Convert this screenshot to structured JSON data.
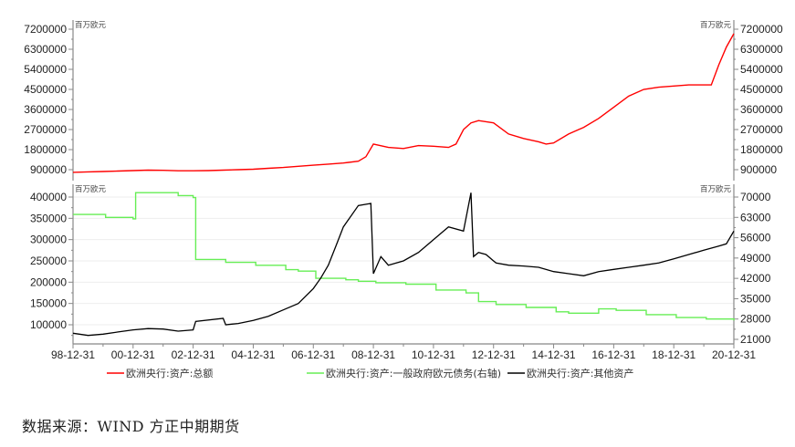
{
  "chart_data": [
    {
      "type": "line",
      "title": "",
      "panel": "top",
      "unit_left": "百万欧元",
      "unit_right": "百万欧元",
      "yaxis_ticks": [
        900000,
        1800000,
        2700000,
        3600000,
        4500000,
        5400000,
        6300000,
        7200000
      ],
      "yaxis_tick_labels": [
        "900000",
        "1800000",
        "2700000",
        "3600000",
        "4500000",
        "5400000",
        "6300000",
        "7200000"
      ],
      "ylim": [
        700000,
        7200000
      ],
      "grid": false,
      "series": [
        {
          "name": "欧洲央行:资产:总额",
          "color": "#ff0000",
          "x": [
            "1998-12",
            "1999-06",
            "1999-12",
            "2000-06",
            "2000-12",
            "2001-06",
            "2001-12",
            "2002-06",
            "2002-12",
            "2003-06",
            "2003-12",
            "2004-06",
            "2004-12",
            "2005-06",
            "2005-12",
            "2006-06",
            "2006-12",
            "2007-06",
            "2007-12",
            "2008-06",
            "2008-09",
            "2008-12",
            "2009-06",
            "2009-12",
            "2010-06",
            "2010-12",
            "2011-06",
            "2011-09",
            "2011-12",
            "2012-03",
            "2012-06",
            "2012-12",
            "2013-06",
            "2013-12",
            "2014-06",
            "2014-09",
            "2014-12",
            "2015-06",
            "2015-12",
            "2016-06",
            "2016-12",
            "2017-06",
            "2017-12",
            "2018-06",
            "2018-12",
            "2019-06",
            "2019-12",
            "2020-03",
            "2020-06",
            "2020-09",
            "2020-12"
          ],
          "values": [
            780000,
            800000,
            820000,
            840000,
            860000,
            880000,
            870000,
            850000,
            850000,
            860000,
            880000,
            900000,
            920000,
            960000,
            1000000,
            1050000,
            1100000,
            1150000,
            1200000,
            1280000,
            1480000,
            2050000,
            1900000,
            1850000,
            1980000,
            1950000,
            1900000,
            2050000,
            2700000,
            3000000,
            3100000,
            3000000,
            2500000,
            2300000,
            2150000,
            2050000,
            2100000,
            2500000,
            2800000,
            3200000,
            3700000,
            4200000,
            4500000,
            4600000,
            4650000,
            4700000,
            4700000,
            4700000,
            5600000,
            6400000,
            7000000
          ]
        }
      ]
    },
    {
      "type": "line",
      "title": "",
      "panel": "bottom",
      "unit_left": "百万欧元",
      "unit_right": "百万欧元",
      "yaxis_left_ticks": [
        100000,
        150000,
        200000,
        250000,
        300000,
        350000,
        400000
      ],
      "yaxis_left_tick_labels": [
        "100000",
        "150000",
        "200000",
        "250000",
        "300000",
        "350000",
        "400000"
      ],
      "yaxis_right_ticks": [
        21000,
        28000,
        35000,
        42000,
        49000,
        56000,
        63000,
        70000
      ],
      "yaxis_right_tick_labels": [
        "21000",
        "28000",
        "35000",
        "42000",
        "49000",
        "56000",
        "63000",
        "70000"
      ],
      "ylim_left": [
        60000,
        415000
      ],
      "ylim_right": [
        21000,
        70000
      ],
      "xlabel": "",
      "xaxis_tick_labels": [
        "98-12-31",
        "00-12-31",
        "02-12-31",
        "04-12-31",
        "06-12-31",
        "08-12-31",
        "10-12-31",
        "12-12-31",
        "14-12-31",
        "16-12-31",
        "18-12-31",
        "20-12-31"
      ],
      "grid": true,
      "series": [
        {
          "name": "欧洲央行:资产:一般政府欧元债务(右轴)",
          "axis": "right",
          "color": "#66ee55",
          "x": [
            "1998-12",
            "1999-12",
            "2000-01",
            "2000-12",
            "2001-01",
            "2001-12",
            "2002-06",
            "2002-12",
            "2003-01",
            "2004-01",
            "2005-01",
            "2006-01",
            "2006-06",
            "2007-01",
            "2008-01",
            "2008-06",
            "2009-01",
            "2010-01",
            "2011-01",
            "2012-01",
            "2012-06",
            "2013-01",
            "2014-01",
            "2015-01",
            "2015-06",
            "2016-01",
            "2016-06",
            "2017-01",
            "2018-01",
            "2019-01",
            "2020-01",
            "2020-12"
          ],
          "values": [
            64000,
            64000,
            63000,
            62500,
            71500,
            71500,
            70500,
            69800,
            48500,
            47500,
            46500,
            45000,
            44500,
            42000,
            41500,
            41000,
            40500,
            40000,
            38000,
            37000,
            34000,
            33000,
            32000,
            30500,
            30000,
            30000,
            31500,
            31000,
            29500,
            28500,
            28000,
            27500
          ]
        },
        {
          "name": "欧洲央行:资产:其他资产",
          "axis": "left",
          "color": "#000000",
          "x": [
            "1998-12",
            "1999-06",
            "1999-12",
            "2000-06",
            "2000-12",
            "2001-06",
            "2001-12",
            "2002-06",
            "2002-12",
            "2003-01",
            "2003-12",
            "2004-01",
            "2004-06",
            "2004-12",
            "2005-06",
            "2005-12",
            "2006-06",
            "2006-12",
            "2007-03",
            "2007-06",
            "2007-09",
            "2007-12",
            "2008-06",
            "2008-11",
            "2008-12",
            "2009-03",
            "2009-06",
            "2009-12",
            "2010-06",
            "2010-12",
            "2011-06",
            "2011-12",
            "2012-03",
            "2012-04",
            "2012-06",
            "2012-09",
            "2012-12",
            "2013-01",
            "2013-06",
            "2013-12",
            "2014-06",
            "2014-12",
            "2015-06",
            "2015-12",
            "2016-06",
            "2016-12",
            "2017-06",
            "2017-12",
            "2018-06",
            "2018-12",
            "2019-06",
            "2019-12",
            "2020-06",
            "2020-09",
            "2020-12"
          ],
          "values": [
            80000,
            75000,
            78000,
            83000,
            88000,
            91000,
            90000,
            85000,
            88000,
            108000,
            115000,
            100000,
            103000,
            110000,
            120000,
            135000,
            150000,
            185000,
            210000,
            240000,
            285000,
            330000,
            380000,
            385000,
            220000,
            260000,
            240000,
            250000,
            270000,
            300000,
            330000,
            320000,
            410000,
            260000,
            270000,
            265000,
            250000,
            245000,
            240000,
            238000,
            235000,
            225000,
            220000,
            215000,
            225000,
            230000,
            235000,
            240000,
            245000,
            255000,
            265000,
            275000,
            285000,
            290000,
            320000
          ]
        },
        {
          "name": "欧洲央行:资产:总额",
          "axis": "top-panel",
          "color": "#ff0000",
          "values": []
        }
      ]
    }
  ],
  "legend": {
    "items": [
      {
        "label": "欧洲央行:资产:总额",
        "color": "#ff0000"
      },
      {
        "label": "欧洲央行:资产:一般政府欧元债务(右轴)",
        "color": "#66ee55"
      },
      {
        "label": "欧洲央行:资产:其他资产",
        "color": "#000000"
      }
    ]
  },
  "source": {
    "text": "数据来源：WIND  方正中期期货"
  }
}
